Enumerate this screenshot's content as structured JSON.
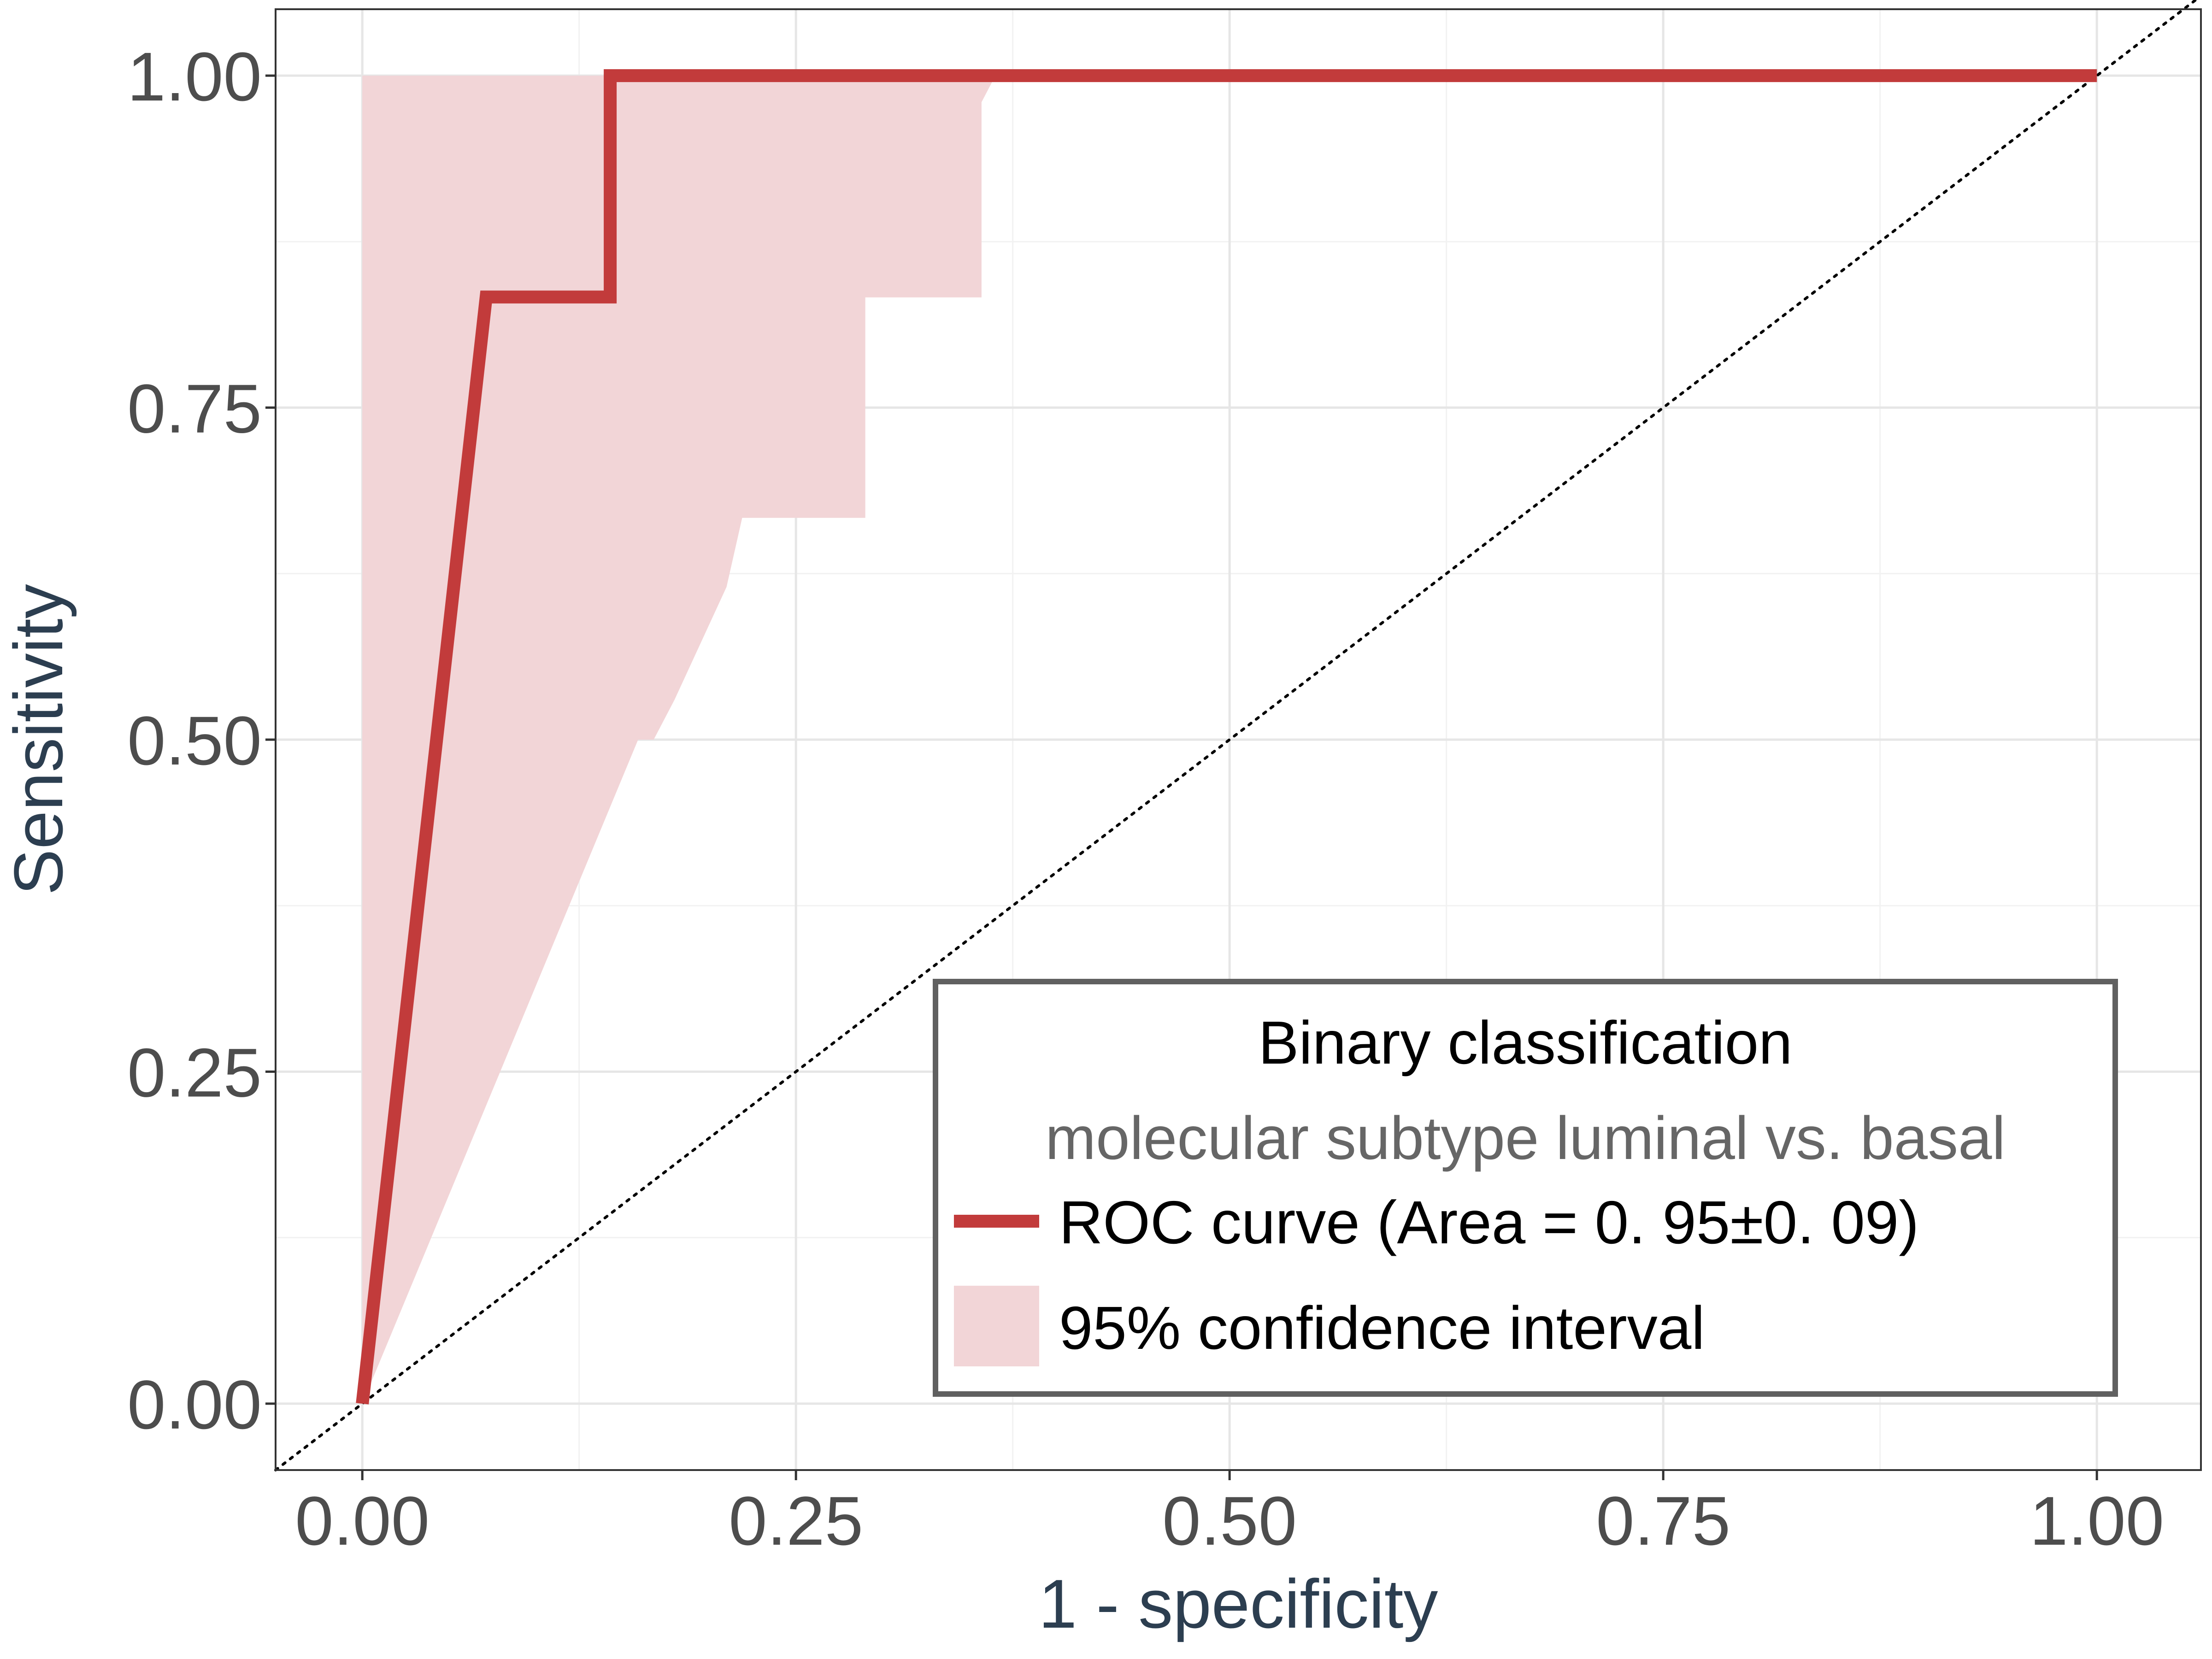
{
  "chart_data": {
    "type": "line",
    "xlabel": "1 - specificity",
    "ylabel": "Sensitivity",
    "xlim": [
      -0.05,
      1.06
    ],
    "ylim": [
      -0.05,
      1.05
    ],
    "x_ticks": [
      0,
      0.25,
      0.5,
      0.75,
      1
    ],
    "y_ticks": [
      0,
      0.25,
      0.5,
      0.75,
      1
    ],
    "x_tick_labels": [
      "0.00",
      "0.25",
      "0.50",
      "0.75",
      "1.00"
    ],
    "y_tick_labels": [
      "0.00",
      "0.25",
      "0.50",
      "0.75",
      "1.00"
    ],
    "grid": true,
    "colors": {
      "roc": "#c23b3b",
      "ci_fill": "#f2d5d7",
      "grid_major": "#e6e6e6",
      "grid_minor": "#f2f2f2",
      "panel_border": "#333333",
      "legend_border": "#606060"
    },
    "series": [
      {
        "name": "ROC curve (Area = 0. 95±0. 09)",
        "kind": "line",
        "x": [
          0,
          0.0714,
          0.0714,
          0.1429,
          0.1429,
          1.0
        ],
        "y": [
          0,
          0.8333,
          0.8333,
          0.8333,
          1.0,
          1.0
        ]
      },
      {
        "name": "95% confidence interval",
        "kind": "band",
        "x": [
          0,
          0,
          0.357,
          0.365,
          0.357,
          0.357,
          0.29,
          0.29,
          0.281,
          0.281,
          0.219,
          0.21,
          0.18,
          0.168,
          0.159,
          0
        ],
        "y": [
          0,
          1.0,
          1.0,
          1.0,
          0.98,
          0.833,
          0.833,
          0.667,
          0.667,
          0.667,
          0.667,
          0.615,
          0.53,
          0.5,
          0.5,
          0
        ]
      },
      {
        "name": "",
        "kind": "reference",
        "x": [
          -0.05,
          1.06
        ],
        "y": [
          -0.05,
          1.06
        ]
      }
    ],
    "legend": {
      "position": "bottom-right",
      "title": "Binary classification",
      "subtitle": "molecular subtype luminal vs. basal",
      "items": [
        "ROC curve (Area = 0. 95±0. 09)",
        "95% confidence interval"
      ]
    }
  }
}
